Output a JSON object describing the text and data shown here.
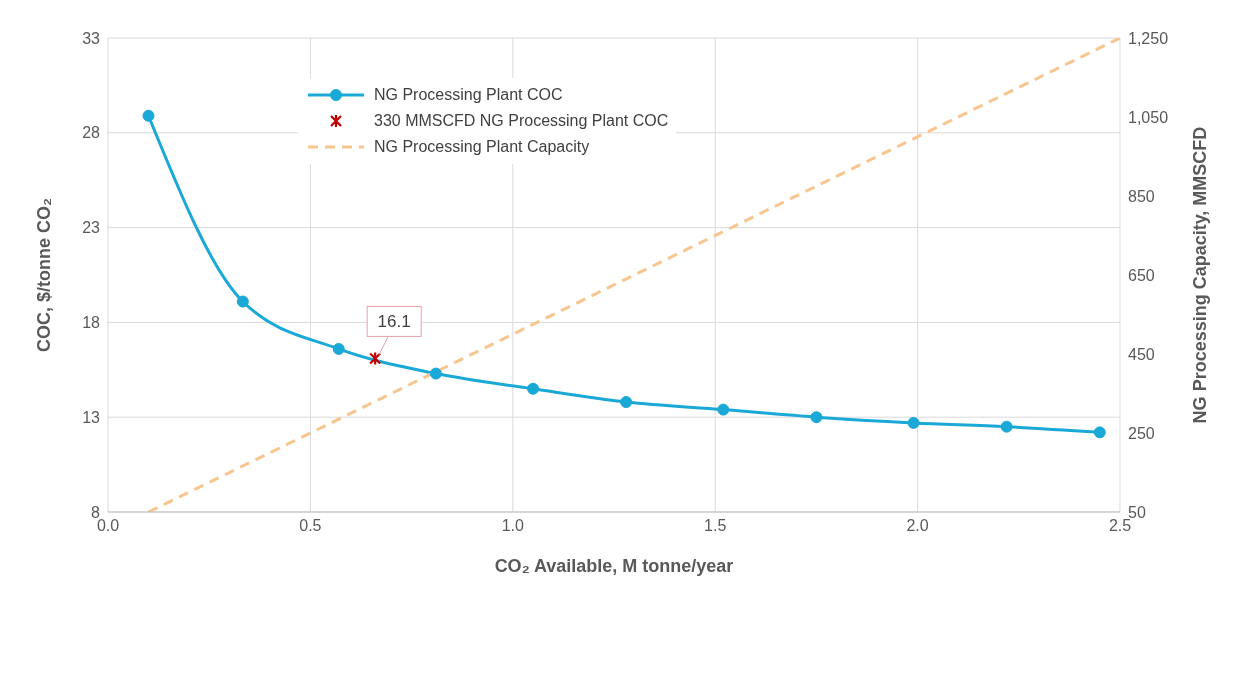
{
  "chart_data": {
    "type": "line",
    "xlabel": "CO₂ Available, M tonne/year",
    "ylabel": "COC, $/tonne CO₂",
    "y2label": "NG Processing Capacity, MMSCFD",
    "xlim": [
      0,
      2.5
    ],
    "xticks": [
      {
        "value": 0,
        "label": "0.0"
      },
      {
        "value": 0.5,
        "label": "0.5"
      },
      {
        "value": 1,
        "label": "1.0"
      },
      {
        "value": 1.5,
        "label": "1.5"
      },
      {
        "value": 2,
        "label": "2.0"
      },
      {
        "value": 2.5,
        "label": "2.5"
      }
    ],
    "ylim": [
      8,
      33
    ],
    "yticks": [
      8,
      13,
      18,
      23,
      28,
      33
    ],
    "y2lim": [
      50,
      1250
    ],
    "y2ticks": [
      50,
      250,
      450,
      650,
      850,
      {
        "value": 1050,
        "label": "1,050"
      },
      {
        "value": 1250,
        "label": "1,250"
      }
    ],
    "grid": true,
    "legend": "top left",
    "series": [
      {
        "name": "NG Processing Plant COC",
        "color": "#1aa9d6",
        "marker": "circle",
        "x": [
          0.1,
          0.333,
          0.57,
          0.81,
          1.05,
          1.28,
          1.52,
          1.75,
          1.99,
          2.22,
          2.45
        ],
        "values": [
          28.9,
          19.1,
          16.6,
          15.3,
          14.5,
          13.8,
          13.4,
          13.0,
          12.7,
          12.5,
          12.2
        ]
      },
      {
        "name": "330 MMSCFD NG Processing Plant COC",
        "type": "scatter",
        "color": "#c00000",
        "marker": "cross",
        "x": [
          0.66
        ],
        "values": [
          16.1
        ]
      },
      {
        "name": "NG Processing Plant Capacity",
        "type": "line",
        "axis": "y2",
        "color": "#f8c58e",
        "marker": "none",
        "line_style": "dashed",
        "x": [
          0.1,
          2.5
        ],
        "values": [
          50,
          1250
        ]
      }
    ],
    "annotations": [
      {
        "text": "16.1",
        "x": 0.66,
        "y": 16.1
      }
    ]
  }
}
